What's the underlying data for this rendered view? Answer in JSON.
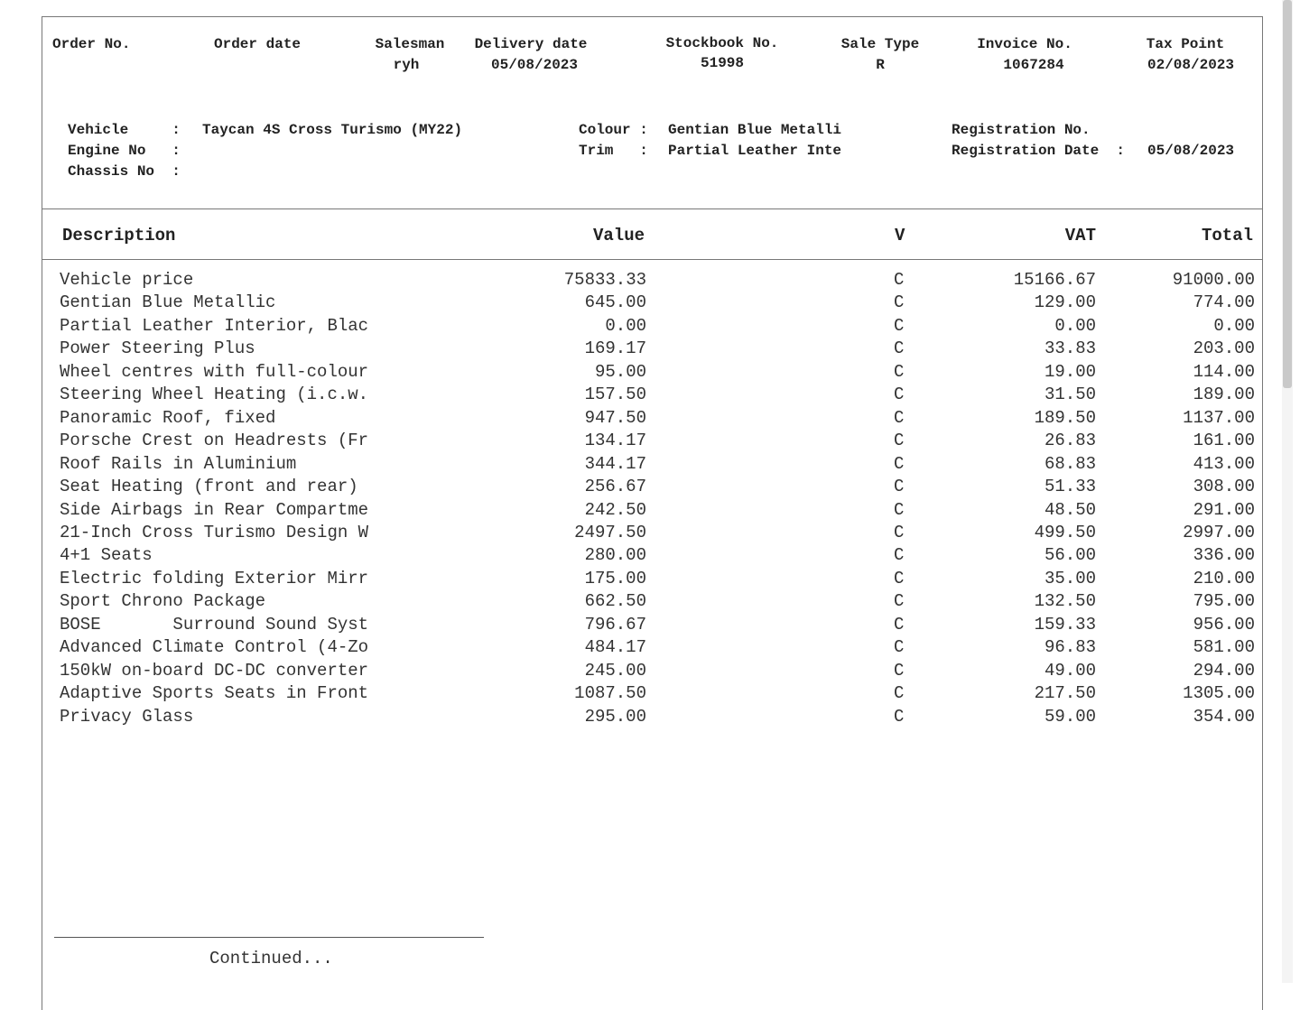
{
  "header": {
    "order_no": {
      "label": "Order No.",
      "value": ""
    },
    "order_date": {
      "label": "Order date",
      "value": ""
    },
    "salesman": {
      "label": "Salesman",
      "value": "ryh"
    },
    "delivery_date": {
      "label": "Delivery date",
      "value": "05/08/2023"
    },
    "stockbook_no": {
      "label": "Stockbook No.",
      "value": "51998"
    },
    "sale_type": {
      "label": "Sale Type",
      "value": "R"
    },
    "invoice_no": {
      "label": "Invoice No.",
      "value": "1067284"
    },
    "tax_point": {
      "label": "Tax Point",
      "value": "02/08/2023"
    }
  },
  "vehicle": {
    "vehicle_label": "Vehicle     :",
    "vehicle_value": "Taycan 4S Cross Turismo (MY22)",
    "engine_label": "Engine No   :",
    "chassis_label": "Chassis No  :",
    "colour_label": "Colour :",
    "colour_value": "Gentian Blue Metalli",
    "trim_label": "Trim   :",
    "trim_value": "Partial Leather Inte",
    "reg_no_label": "Registration No.",
    "reg_date_label": "Registration Date  :",
    "reg_date_value": "05/08/2023"
  },
  "table": {
    "columns": {
      "description": "Description",
      "value": "Value",
      "v": "V",
      "vat": "VAT",
      "total": "Total"
    },
    "rows": [
      [
        "Vehicle price",
        "75833.33",
        "C",
        "15166.67",
        "91000.00"
      ],
      [
        "Gentian Blue Metallic",
        "645.00",
        "C",
        "129.00",
        "774.00"
      ],
      [
        "Partial Leather Interior, Blac",
        "0.00",
        "C",
        "0.00",
        "0.00"
      ],
      [
        "Power Steering Plus",
        "169.17",
        "C",
        "33.83",
        "203.00"
      ],
      [
        "Wheel centres with full-colour",
        "95.00",
        "C",
        "19.00",
        "114.00"
      ],
      [
        "Steering Wheel Heating (i.c.w.",
        "157.50",
        "C",
        "31.50",
        "189.00"
      ],
      [
        "Panoramic Roof, fixed",
        "947.50",
        "C",
        "189.50",
        "1137.00"
      ],
      [
        "Porsche Crest on Headrests (Fr",
        "134.17",
        "C",
        "26.83",
        "161.00"
      ],
      [
        "Roof Rails in Aluminium",
        "344.17",
        "C",
        "68.83",
        "413.00"
      ],
      [
        "Seat Heating (front and rear)",
        "256.67",
        "C",
        "51.33",
        "308.00"
      ],
      [
        "Side Airbags in Rear Compartme",
        "242.50",
        "C",
        "48.50",
        "291.00"
      ],
      [
        "21-Inch Cross Turismo Design W",
        "2497.50",
        "C",
        "499.50",
        "2997.00"
      ],
      [
        "4+1 Seats",
        "280.00",
        "C",
        "56.00",
        "336.00"
      ],
      [
        "Electric folding Exterior Mirr",
        "175.00",
        "C",
        "35.00",
        "210.00"
      ],
      [
        "Sport Chrono Package",
        "662.50",
        "C",
        "132.50",
        "795.00"
      ],
      [
        "BOSE       Surround Sound Syst",
        "796.67",
        "C",
        "159.33",
        "956.00"
      ],
      [
        "Advanced Climate Control (4-Zo",
        "484.17",
        "C",
        "96.83",
        "581.00"
      ],
      [
        "150kW on-board DC-DC converter",
        "245.00",
        "C",
        "49.00",
        "294.00"
      ],
      [
        "Adaptive Sports Seats in Front",
        "1087.50",
        "C",
        "217.50",
        "1305.00"
      ],
      [
        "Privacy Glass",
        "295.00",
        "C",
        "59.00",
        "354.00"
      ]
    ]
  },
  "footer": {
    "continued": "Continued..."
  }
}
